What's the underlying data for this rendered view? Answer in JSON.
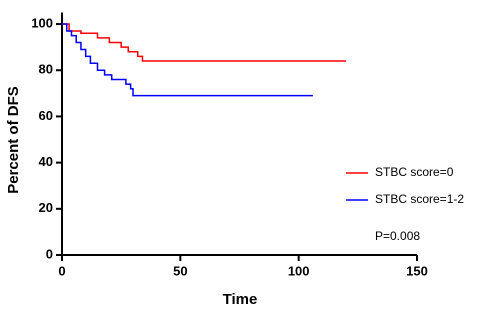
{
  "chart_data": {
    "type": "line",
    "step": "post",
    "x_label": "Time",
    "y_label": "Percent of DFS",
    "xlim": [
      0,
      150
    ],
    "xticks": [
      0,
      50,
      100,
      150
    ],
    "ylim": [
      0,
      105
    ],
    "yticks": [
      0,
      20,
      40,
      60,
      80,
      100
    ],
    "grid": false,
    "legend": "right",
    "annotation": "P=0.008",
    "series": [
      {
        "name": "STBC score=0",
        "color": "#ff0000",
        "x": [
          0,
          3,
          8,
          15,
          20,
          25,
          28,
          32,
          34,
          120
        ],
        "values": [
          100,
          97,
          96,
          94,
          92,
          90,
          88,
          86,
          84,
          84
        ]
      },
      {
        "name": "STBC score=1-2",
        "color": "#0000ff",
        "x": [
          0,
          2,
          4,
          6,
          8,
          10,
          12,
          15,
          18,
          21,
          27,
          29,
          30,
          106
        ],
        "values": [
          100,
          97,
          95,
          92,
          89,
          86,
          83,
          80,
          78,
          76,
          74,
          72,
          69,
          69
        ]
      }
    ]
  }
}
